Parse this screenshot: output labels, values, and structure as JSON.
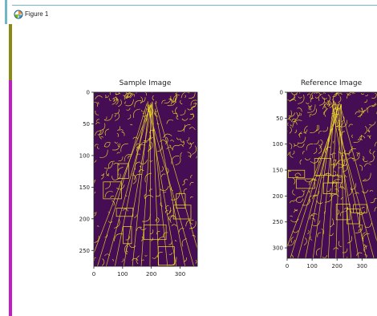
{
  "window": {
    "title": "Figure 1",
    "icon": "matplotlib-figure-icon"
  },
  "colors": {
    "plot_background": "#450d54",
    "edge_color": "#f7e225",
    "title_accent": "#6fb6c6"
  },
  "figure": {
    "subplots": [
      {
        "title": "Sample Image",
        "x_ticks": [
          "0",
          "100",
          "200",
          "300"
        ],
        "y_ticks": [
          "0",
          "50",
          "100",
          "150",
          "200",
          "250"
        ],
        "xlim": [
          0,
          360
        ],
        "ylim": [
          275,
          0
        ]
      },
      {
        "title": "Reference Image",
        "x_ticks": [
          "0",
          "100",
          "200",
          "300"
        ],
        "y_ticks": [
          "0",
          "50",
          "100",
          "150",
          "200",
          "250",
          "300"
        ],
        "xlim": [
          0,
          360
        ],
        "ylim": [
          320,
          0
        ]
      }
    ]
  }
}
